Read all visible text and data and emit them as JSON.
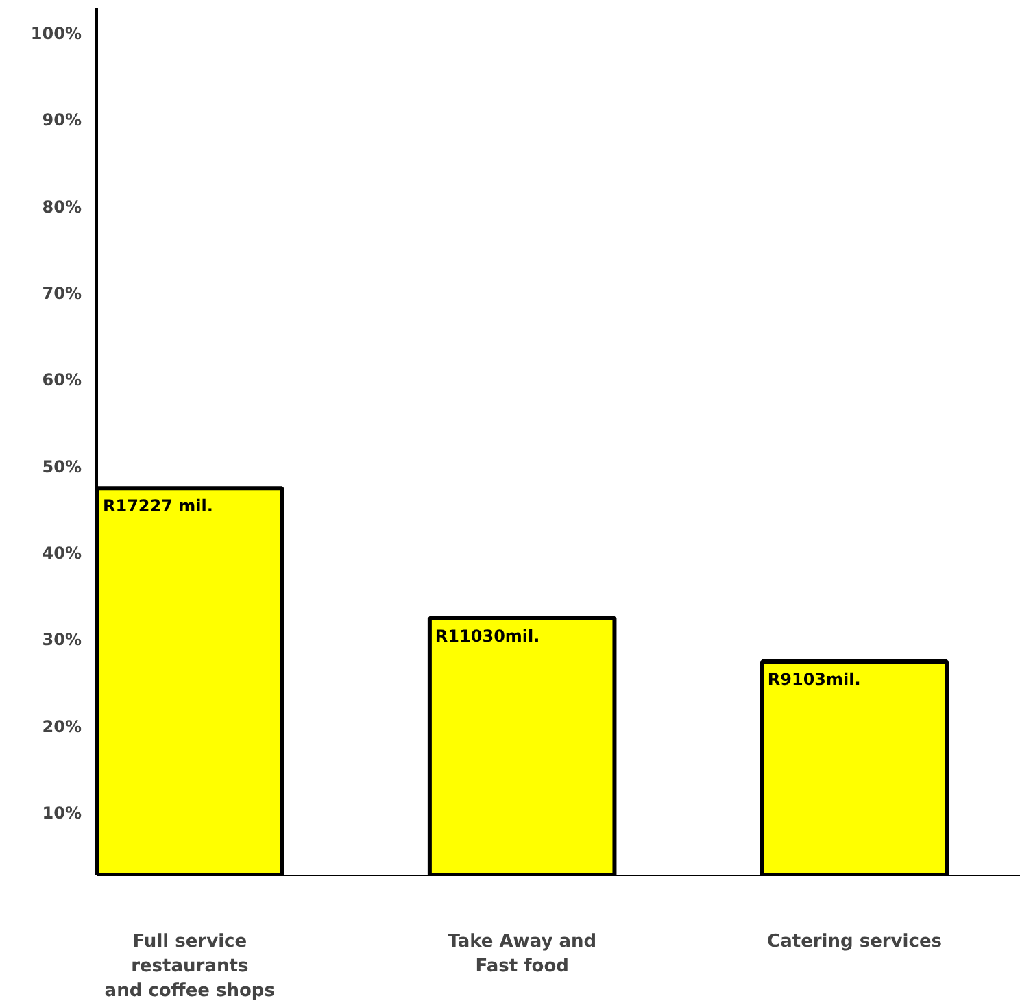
{
  "chart_data": {
    "type": "bar",
    "categories": [
      "Full service\nrestaurants\nand coffee shops",
      "Take Away and\nFast food",
      "Catering services"
    ],
    "values": [
      47.5,
      32.5,
      27.5
    ],
    "value_labels": [
      "R17227 mil.",
      "R11030mil.",
      "R9103mil."
    ],
    "color": "#ffff00",
    "ylim": [
      2.8,
      103
    ],
    "yticks": [
      {
        "value": 10,
        "label": "10%"
      },
      {
        "value": 20,
        "label": "20%"
      },
      {
        "value": 30,
        "label": "30%"
      },
      {
        "value": 40,
        "label": "40%"
      },
      {
        "value": 50,
        "label": "50%"
      },
      {
        "value": 60,
        "label": "60%"
      },
      {
        "value": 70,
        "label": "70%"
      },
      {
        "value": 80,
        "label": "80%"
      },
      {
        "value": 90,
        "label": "90%"
      },
      {
        "value": 100,
        "label": "100%"
      }
    ],
    "grid": false
  }
}
